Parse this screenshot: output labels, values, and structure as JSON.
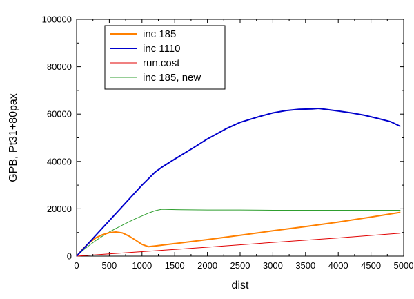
{
  "chart_data": {
    "type": "line",
    "title": "",
    "xlabel": "dist",
    "ylabel": "GPB, Pt31+80pax",
    "xlim": [
      0,
      5000
    ],
    "ylim": [
      0,
      100000
    ],
    "x_ticks": [
      0,
      500,
      1000,
      1500,
      2000,
      2500,
      3000,
      3500,
      4000,
      4500,
      5000
    ],
    "y_ticks": [
      0,
      20000,
      40000,
      60000,
      80000,
      100000
    ],
    "x_tick_labels": [
      "0",
      "500",
      "1000",
      "1500",
      "2000",
      "2500",
      "3000",
      "3500",
      "4000",
      "4500",
      "5000"
    ],
    "y_tick_labels": [
      "0",
      "20000",
      "40000",
      "60000",
      "80000",
      "100000"
    ],
    "grid": false,
    "legend_position": "top-left",
    "series": [
      {
        "name": "inc 185",
        "color": "#ff8000",
        "x": [
          0,
          100,
          200,
          300,
          400,
          500,
          600,
          700,
          800,
          900,
          1000,
          1100,
          1200,
          1500,
          2000,
          2500,
          3000,
          3500,
          4000,
          4500,
          4950
        ],
        "y": [
          0,
          3200,
          5800,
          7800,
          9100,
          9900,
          10200,
          9800,
          8500,
          6800,
          5000,
          4000,
          4300,
          5300,
          7000,
          8800,
          10700,
          12500,
          14400,
          16500,
          18500
        ]
      },
      {
        "name": "inc 1110",
        "color": "#0000cc",
        "x": [
          0,
          200,
          400,
          600,
          800,
          1000,
          1200,
          1300,
          1500,
          1800,
          2000,
          2300,
          2500,
          2800,
          3000,
          3200,
          3400,
          3600,
          3700,
          3800,
          4000,
          4200,
          4400,
          4600,
          4800,
          4950
        ],
        "y": [
          0,
          6000,
          12000,
          18000,
          24000,
          30000,
          35500,
          37500,
          41000,
          46000,
          49500,
          54000,
          56500,
          59000,
          60500,
          61500,
          62000,
          62200,
          62400,
          62000,
          61300,
          60500,
          59500,
          58200,
          56800,
          54800
        ]
      },
      {
        "name": "run.cost",
        "color": "#e00000",
        "x": [
          0,
          1000,
          2000,
          3000,
          4000,
          4950
        ],
        "y": [
          0,
          1900,
          3800,
          5800,
          7700,
          9700
        ]
      },
      {
        "name": "inc 185, new",
        "color": "#2e9e2e",
        "x": [
          0,
          100,
          200,
          300,
          400,
          500,
          600,
          700,
          800,
          900,
          1000,
          1100,
          1200,
          1300,
          1400,
          1600,
          2000,
          2500,
          3000,
          3500,
          4000,
          4500,
          4950
        ],
        "y": [
          0,
          2500,
          4700,
          6700,
          8500,
          10200,
          11700,
          13100,
          14500,
          15800,
          17000,
          18200,
          19200,
          19800,
          19700,
          19600,
          19500,
          19500,
          19400,
          19400,
          19400,
          19400,
          19400
        ]
      }
    ]
  }
}
